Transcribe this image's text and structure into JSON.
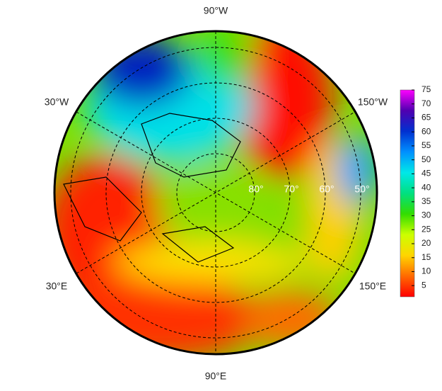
{
  "chart_data": {
    "type": "polar-map",
    "longitude_labels": [
      "90°W",
      "30°W",
      "150°W",
      "30°E",
      "150°E",
      "90°E"
    ],
    "latitude_labels": [
      "80°",
      "70°",
      "60°",
      "50°"
    ],
    "colorbar": {
      "clim": [
        1,
        75
      ],
      "ticks": [
        5,
        10,
        15,
        20,
        25,
        30,
        35,
        40,
        45,
        50,
        55,
        60,
        65,
        70,
        75
      ],
      "colors": [
        "#ff0000",
        "#ff6a00",
        "#ffd500",
        "#ccff00",
        "#33dd00",
        "#00e080",
        "#00e8e8",
        "#0090ff",
        "#0030d0",
        "#5000b0",
        "#ff00ff"
      ]
    }
  }
}
